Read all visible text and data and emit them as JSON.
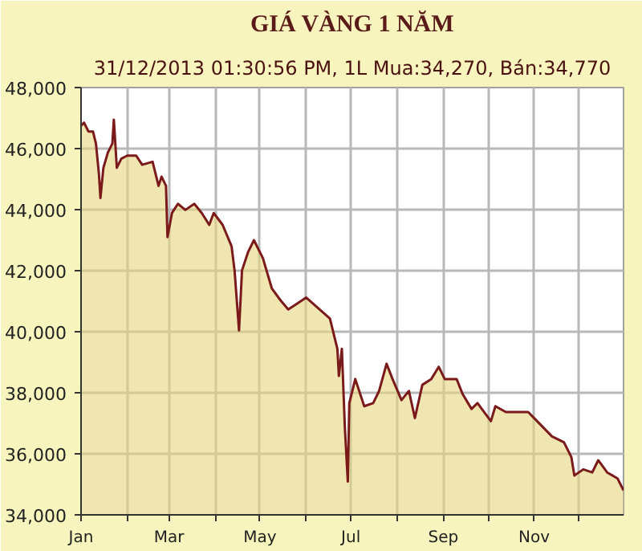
{
  "chart_data": {
    "type": "area",
    "title": "GIÁ VÀNG 1 NĂM",
    "subtitle": "31/12/2013 01:30:56 PM, 1L Mua:34,270, Bán:34,770",
    "x": [
      "2013-01-01",
      "2013-01-03",
      "2013-01-06",
      "2013-01-09",
      "2013-01-11",
      "2013-01-13",
      "2013-01-14",
      "2013-01-16",
      "2013-01-19",
      "2013-01-22",
      "2013-01-23",
      "2013-01-25",
      "2013-01-28",
      "2013-02-01",
      "2013-02-07",
      "2013-02-11",
      "2013-02-18",
      "2013-02-22",
      "2013-02-24",
      "2013-02-27",
      "2013-02-28",
      "2013-03-03",
      "2013-03-07",
      "2013-03-12",
      "2013-03-18",
      "2013-03-23",
      "2013-03-28",
      "2013-03-31",
      "2013-04-06",
      "2013-04-12",
      "2013-04-14",
      "2013-04-17",
      "2013-04-19",
      "2013-04-23",
      "2013-04-27",
      "2013-05-03",
      "2013-05-09",
      "2013-05-15",
      "2013-05-20",
      "2013-05-26",
      "2013-06-01",
      "2013-06-17",
      "2013-06-22",
      "2013-06-23",
      "2013-06-25",
      "2013-06-27",
      "2013-06-29",
      "2013-06-30",
      "2013-07-04",
      "2013-07-10",
      "2013-07-16",
      "2013-07-20",
      "2013-07-25",
      "2013-07-29",
      "2013-08-04",
      "2013-08-09",
      "2013-08-13",
      "2013-08-18",
      "2013-08-24",
      "2013-08-29",
      "2013-09-02",
      "2013-09-10",
      "2013-09-14",
      "2013-09-20",
      "2013-09-24",
      "2013-10-03",
      "2013-10-06",
      "2013-10-13",
      "2013-10-21",
      "2013-10-28",
      "2013-11-05",
      "2013-11-13",
      "2013-11-21",
      "2013-11-26",
      "2013-11-28",
      "2013-12-04",
      "2013-12-10",
      "2013-12-14",
      "2013-12-20",
      "2013-12-27",
      "2013-12-31"
    ],
    "series": [
      {
        "color": "#7a1a1a",
        "values": [
          46750,
          46850,
          46560,
          46560,
          46160,
          45170,
          44380,
          45370,
          45870,
          46160,
          46950,
          45370,
          45670,
          45770,
          45770,
          45470,
          45570,
          44780,
          45080,
          44780,
          43100,
          43890,
          44190,
          43990,
          44190,
          43890,
          43500,
          43890,
          43500,
          42800,
          42010,
          40040,
          42010,
          42600,
          43000,
          42410,
          41420,
          41020,
          40730,
          40920,
          41120,
          40430,
          39440,
          38550,
          39440,
          36870,
          35090,
          37660,
          38450,
          37560,
          37660,
          38060,
          38950,
          38450,
          37760,
          38060,
          37170,
          38260,
          38450,
          38850,
          38450,
          38450,
          37960,
          37470,
          37660,
          37070,
          37560,
          37370,
          37370,
          37370,
          36970,
          36570,
          36380,
          35890,
          35290,
          35490,
          35390,
          35790,
          35390,
          35190,
          34800
        ]
      }
    ],
    "xlim": [
      "2013-01-01",
      "2013-12-31"
    ],
    "xticks": [
      {
        "value": "2013-01-01",
        "label": "Jan"
      },
      {
        "value": "2013-02-01",
        "label": null
      },
      {
        "value": "2013-03-01",
        "label": "Mar"
      },
      {
        "value": "2013-04-01",
        "label": null
      },
      {
        "value": "2013-05-01",
        "label": "May"
      },
      {
        "value": "2013-06-01",
        "label": null
      },
      {
        "value": "2013-07-01",
        "label": "Jul"
      },
      {
        "value": "2013-08-01",
        "label": null
      },
      {
        "value": "2013-09-01",
        "label": "Sep"
      },
      {
        "value": "2013-10-01",
        "label": null
      },
      {
        "value": "2013-11-01",
        "label": "Nov"
      },
      {
        "value": "2013-12-01",
        "label": null
      }
    ],
    "ylim": [
      34000,
      48000
    ],
    "yticks": [
      {
        "value": 34000,
        "label": "34,000"
      },
      {
        "value": 36000,
        "label": "36,000"
      },
      {
        "value": 38000,
        "label": "38,000"
      },
      {
        "value": 40000,
        "label": "40,000"
      },
      {
        "value": 42000,
        "label": "42,000"
      },
      {
        "value": 44000,
        "label": "44,000"
      },
      {
        "value": 46000,
        "label": "46,000"
      },
      {
        "value": 48000,
        "label": "48,000"
      }
    ],
    "grid": true
  }
}
